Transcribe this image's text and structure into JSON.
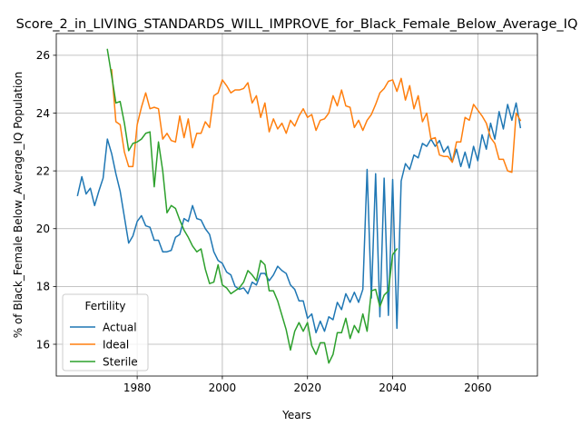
{
  "chart_data": {
    "type": "line",
    "title": "Score_2_in_LIVING_STANDARDS_WILL_IMPROVE_for_Black_Female_Below_Average_IQ",
    "xlabel": "Years",
    "ylabel": "% of Black_Female Below_Average_IQ Population",
    "xlim": [
      1961,
      2074
    ],
    "ylim": [
      14.9,
      26.75
    ],
    "xticks": [
      1980,
      2000,
      2020,
      2040,
      2060
    ],
    "yticks": [
      16,
      18,
      20,
      22,
      24,
      26
    ],
    "grid": true,
    "legend": {
      "title": "Fertility",
      "placement": "lower-left"
    },
    "series": [
      {
        "name": "Actual",
        "color": "#1f77b4",
        "x": [
          1966,
          1967,
          1968,
          1969,
          1970,
          1971,
          1972,
          1973,
          1974,
          1975,
          1976,
          1977,
          1978,
          1979,
          1980,
          1981,
          1982,
          1983,
          1984,
          1985,
          1986,
          1987,
          1988,
          1989,
          1990,
          1991,
          1992,
          1993,
          1994,
          1995,
          1996,
          1997,
          1998,
          1999,
          2000,
          2001,
          2002,
          2003,
          2004,
          2005,
          2006,
          2007,
          2008,
          2009,
          2010,
          2011,
          2012,
          2013,
          2014,
          2015,
          2016,
          2017,
          2018,
          2019,
          2020,
          2021,
          2022,
          2023,
          2024,
          2025,
          2026,
          2027,
          2028,
          2029,
          2030,
          2031,
          2032,
          2033,
          2034,
          2035,
          2036,
          2037,
          2038,
          2039,
          2040,
          2041,
          2042,
          2043,
          2044,
          2045,
          2046,
          2047,
          2048,
          2049,
          2050,
          2051,
          2052,
          2053,
          2054,
          2055,
          2056,
          2057,
          2058,
          2059,
          2060,
          2061,
          2062,
          2063,
          2064,
          2065,
          2066,
          2067,
          2068,
          2069,
          2070
        ],
        "values": [
          21.15,
          21.8,
          21.2,
          21.4,
          20.8,
          21.3,
          21.75,
          23.1,
          22.6,
          21.9,
          21.3,
          20.4,
          19.5,
          19.75,
          20.25,
          20.45,
          20.1,
          20.05,
          19.6,
          19.6,
          19.2,
          19.2,
          19.25,
          19.7,
          19.8,
          20.35,
          20.25,
          20.8,
          20.35,
          20.3,
          20.0,
          19.8,
          19.2,
          18.9,
          18.8,
          18.5,
          18.4,
          18.0,
          17.9,
          17.95,
          17.75,
          18.15,
          18.05,
          18.45,
          18.45,
          18.2,
          18.4,
          18.7,
          18.55,
          18.45,
          18.05,
          17.9,
          17.5,
          17.5,
          16.9,
          17.05,
          16.4,
          16.8,
          16.45,
          16.95,
          16.85,
          17.45,
          17.2,
          17.75,
          17.45,
          17.8,
          17.45,
          17.9,
          22.05,
          17.6,
          21.9,
          16.95,
          21.75,
          17.0,
          21.7,
          16.55,
          21.65,
          22.25,
          22.05,
          22.55,
          22.45,
          22.95,
          22.85,
          23.1,
          22.85,
          23.05,
          22.65,
          22.85,
          22.3,
          22.75,
          22.15,
          22.65,
          22.1,
          22.85,
          22.35,
          23.25,
          22.75,
          23.65,
          23.1,
          24.05,
          23.45,
          24.3,
          23.75,
          24.35,
          23.5
        ]
      },
      {
        "name": "Ideal",
        "color": "#ff7f0e",
        "x": [
          1974,
          1975,
          1976,
          1977,
          1978,
          1979,
          1980,
          1981,
          1982,
          1983,
          1984,
          1985,
          1986,
          1987,
          1988,
          1989,
          1990,
          1991,
          1992,
          1993,
          1994,
          1995,
          1996,
          1997,
          1998,
          1999,
          2000,
          2001,
          2002,
          2003,
          2004,
          2005,
          2006,
          2007,
          2008,
          2009,
          2010,
          2011,
          2012,
          2013,
          2014,
          2015,
          2016,
          2017,
          2018,
          2019,
          2020,
          2021,
          2022,
          2023,
          2024,
          2025,
          2026,
          2027,
          2028,
          2029,
          2030,
          2031,
          2032,
          2033,
          2034,
          2035,
          2036,
          2037,
          2038,
          2039,
          2040,
          2041,
          2042,
          2043,
          2044,
          2045,
          2046,
          2047,
          2048,
          2049,
          2050,
          2051,
          2052,
          2053,
          2054,
          2055,
          2056,
          2057,
          2058,
          2059,
          2060,
          2061,
          2062,
          2063,
          2064,
          2065,
          2066,
          2067,
          2068,
          2069,
          2070
        ],
        "values": [
          25.5,
          23.7,
          23.6,
          22.65,
          22.15,
          22.15,
          23.6,
          24.2,
          24.7,
          24.15,
          24.2,
          24.15,
          23.1,
          23.3,
          23.05,
          23.0,
          23.9,
          23.15,
          23.8,
          22.8,
          23.3,
          23.3,
          23.7,
          23.5,
          24.6,
          24.7,
          25.15,
          24.95,
          24.7,
          24.8,
          24.8,
          24.85,
          25.05,
          24.35,
          24.6,
          23.85,
          24.35,
          23.35,
          23.8,
          23.45,
          23.65,
          23.3,
          23.75,
          23.55,
          23.9,
          24.15,
          23.85,
          23.95,
          23.4,
          23.75,
          23.8,
          24.0,
          24.6,
          24.25,
          24.8,
          24.25,
          24.2,
          23.5,
          23.75,
          23.4,
          23.75,
          23.95,
          24.3,
          24.7,
          24.85,
          25.1,
          25.15,
          24.75,
          25.2,
          24.45,
          24.95,
          24.15,
          24.6,
          23.7,
          24.0,
          23.1,
          23.15,
          22.55,
          22.5,
          22.5,
          22.3,
          23.0,
          23.0,
          23.85,
          23.75,
          24.3,
          24.1,
          23.9,
          23.65,
          23.15,
          22.95,
          22.4,
          22.4,
          22.0,
          21.95,
          24.0,
          23.75
        ]
      },
      {
        "name": "Sterile",
        "color": "#2ca02c",
        "x": [
          1973,
          1974,
          1975,
          1976,
          1977,
          1978,
          1979,
          1980,
          1981,
          1982,
          1983,
          1984,
          1985,
          1986,
          1987,
          1988,
          1989,
          1990,
          1991,
          1992,
          1993,
          1994,
          1995,
          1996,
          1997,
          1998,
          1999,
          2000,
          2001,
          2002,
          2003,
          2004,
          2005,
          2006,
          2007,
          2008,
          2009,
          2010,
          2011,
          2012,
          2013,
          2014,
          2015,
          2016,
          2017,
          2018,
          2019,
          2020,
          2021,
          2022,
          2023,
          2024,
          2025,
          2026,
          2027,
          2028,
          2029,
          2030,
          2031,
          2032,
          2033,
          2034,
          2035,
          2036,
          2037,
          2038,
          2039,
          2040,
          2041
        ],
        "values": [
          26.2,
          25.3,
          24.35,
          24.4,
          23.65,
          22.7,
          22.95,
          23.0,
          23.1,
          23.3,
          23.35,
          21.45,
          23.0,
          22.0,
          20.55,
          20.8,
          20.7,
          20.3,
          19.95,
          19.7,
          19.4,
          19.2,
          19.3,
          18.6,
          18.1,
          18.15,
          18.75,
          18.05,
          17.95,
          17.75,
          17.85,
          17.95,
          18.15,
          18.55,
          18.4,
          18.2,
          18.9,
          18.75,
          17.85,
          17.85,
          17.5,
          17.0,
          16.5,
          15.8,
          16.45,
          16.75,
          16.45,
          16.75,
          15.95,
          15.65,
          16.05,
          16.05,
          15.35,
          15.65,
          16.4,
          16.4,
          16.9,
          16.2,
          16.65,
          16.4,
          17.05,
          16.45,
          17.85,
          17.9,
          17.3,
          17.7,
          17.85,
          19.1,
          19.3
        ]
      }
    ]
  }
}
